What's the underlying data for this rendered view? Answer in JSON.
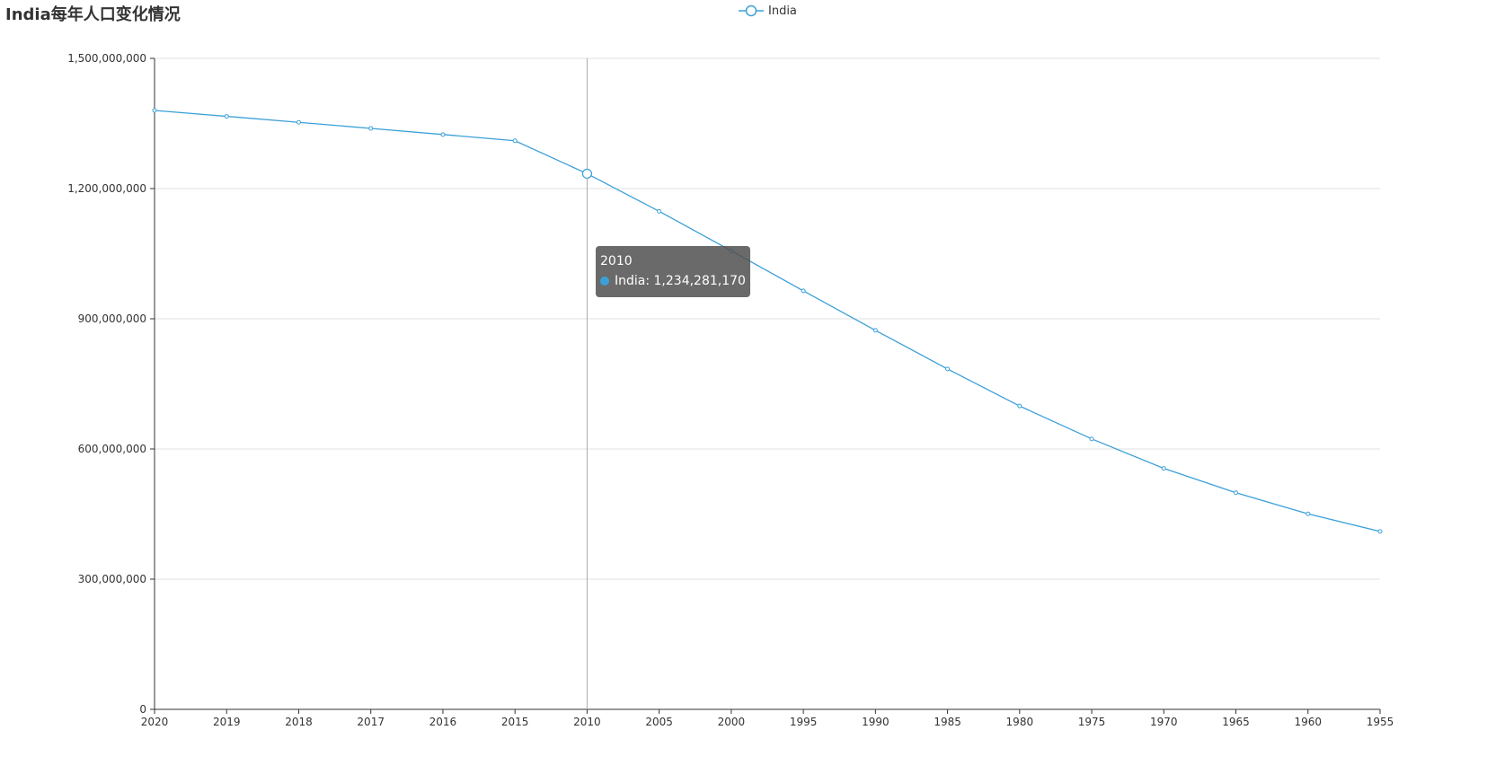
{
  "chart_data": {
    "type": "line",
    "title": "India每年人口变化情况",
    "xlabel": "",
    "ylabel": "",
    "categories": [
      "2020",
      "2019",
      "2018",
      "2017",
      "2016",
      "2015",
      "2010",
      "2005",
      "2000",
      "1995",
      "1990",
      "1985",
      "1980",
      "1975",
      "1970",
      "1965",
      "1960",
      "1955"
    ],
    "series": [
      {
        "name": "India",
        "color": "#3ba0d8",
        "values": [
          1380004385,
          1366417754,
          1352642280,
          1338676785,
          1324517249,
          1310152403,
          1234281170,
          1147609927,
          1056575549,
          964279129,
          873277798,
          784360008,
          698952844,
          623102897,
          555189792,
          499123324,
          450547679,
          409880595
        ]
      }
    ],
    "ylim": [
      0,
      1500000000
    ],
    "yticks": [
      "0",
      "300,000,000",
      "600,000,000",
      "900,000,000",
      "1,200,000,000",
      "1,500,000,000"
    ],
    "grid": true,
    "legend_position": "top-center"
  },
  "tooltip": {
    "title": "2010",
    "series_name": "India",
    "value_text": "1,234,281,170",
    "line": "India: 1,234,281,170",
    "highlight_index": 6
  },
  "colors": {
    "series": "#3ba0d8",
    "axis": "#333333",
    "grid": "#e0e0e0",
    "tooltip_bg": "#505050"
  }
}
